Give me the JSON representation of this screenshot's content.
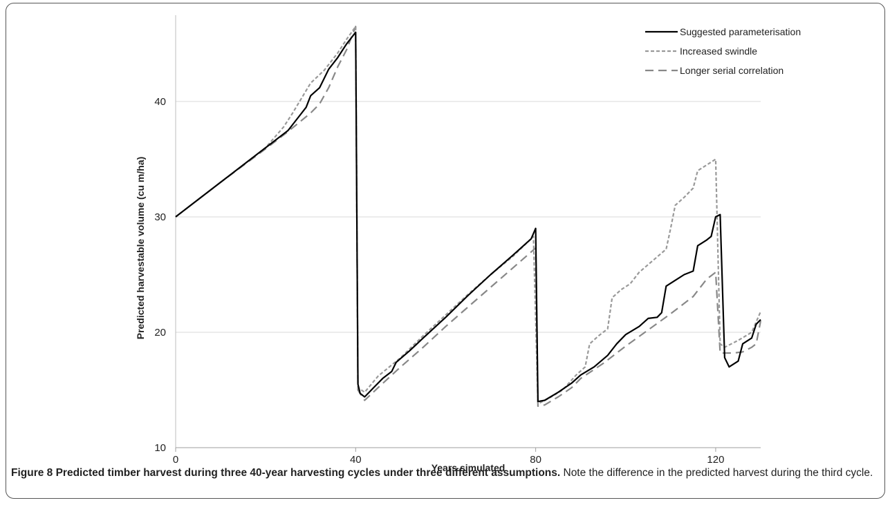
{
  "chart_data": {
    "type": "line",
    "xlabel": "Years simulated",
    "ylabel": "Predicted harvestable volume (cu m/ha)",
    "xlim": [
      0,
      130
    ],
    "ylim": [
      10,
      47
    ],
    "xticks": [
      0,
      40,
      80,
      120
    ],
    "yticks": [
      10,
      20,
      30,
      40
    ],
    "grid": "horizontal",
    "legend": "top-right",
    "series": [
      {
        "name": "Suggested parameterisation",
        "style": "solid",
        "color": "#000000",
        "points": [
          [
            0,
            30
          ],
          [
            10,
            33
          ],
          [
            20,
            36
          ],
          [
            25,
            37.5
          ],
          [
            27,
            38.5
          ],
          [
            29,
            39.5
          ],
          [
            30,
            40.5
          ],
          [
            32,
            41.2
          ],
          [
            34,
            42.8
          ],
          [
            36,
            43.8
          ],
          [
            38,
            45
          ],
          [
            40,
            46
          ],
          [
            40.5,
            15.5
          ],
          [
            41,
            14.7
          ],
          [
            42,
            14.4
          ],
          [
            44,
            15.2
          ],
          [
            46,
            16
          ],
          [
            48,
            16.6
          ],
          [
            49,
            17.4
          ],
          [
            52,
            18.4
          ],
          [
            55,
            19.5
          ],
          [
            60,
            21.3
          ],
          [
            65,
            23.2
          ],
          [
            70,
            25
          ],
          [
            75,
            26.7
          ],
          [
            79,
            28.1
          ],
          [
            80,
            29
          ],
          [
            80.5,
            14
          ],
          [
            82,
            14.1
          ],
          [
            85,
            14.8
          ],
          [
            88,
            15.6
          ],
          [
            90,
            16.3
          ],
          [
            93,
            17
          ],
          [
            96,
            18
          ],
          [
            98,
            19
          ],
          [
            100,
            19.8
          ],
          [
            103,
            20.5
          ],
          [
            105,
            21.2
          ],
          [
            107,
            21.3
          ],
          [
            108,
            21.7
          ],
          [
            109,
            24
          ],
          [
            111,
            24.5
          ],
          [
            113,
            25
          ],
          [
            115,
            25.3
          ],
          [
            116,
            27.5
          ],
          [
            118,
            28
          ],
          [
            119,
            28.3
          ],
          [
            120,
            30
          ],
          [
            121,
            30.2
          ],
          [
            122,
            17.8
          ],
          [
            123,
            17
          ],
          [
            125,
            17.5
          ],
          [
            126,
            19
          ],
          [
            128,
            19.5
          ],
          [
            129,
            20.7
          ],
          [
            130,
            21.1
          ]
        ]
      },
      {
        "name": "Increased swindle",
        "style": "short-dash",
        "color": "#999999",
        "points": [
          [
            0,
            30
          ],
          [
            10,
            33
          ],
          [
            20,
            36
          ],
          [
            24,
            37.8
          ],
          [
            26,
            39
          ],
          [
            28,
            40.3
          ],
          [
            30,
            41.6
          ],
          [
            33,
            42.7
          ],
          [
            36,
            44.2
          ],
          [
            38,
            45.4
          ],
          [
            40,
            46.5
          ],
          [
            40.5,
            15.2
          ],
          [
            42,
            14.8
          ],
          [
            45,
            16.2
          ],
          [
            50,
            17.8
          ],
          [
            55,
            19.7
          ],
          [
            60,
            21.5
          ],
          [
            65,
            23.3
          ],
          [
            70,
            25
          ],
          [
            75,
            26.6
          ],
          [
            79.5,
            28.3
          ],
          [
            80.5,
            13.8
          ],
          [
            83,
            14.3
          ],
          [
            86,
            15
          ],
          [
            89,
            16.3
          ],
          [
            91,
            17
          ],
          [
            92,
            19
          ],
          [
            94,
            19.7
          ],
          [
            96,
            20.3
          ],
          [
            97,
            23
          ],
          [
            99,
            23.7
          ],
          [
            101,
            24.2
          ],
          [
            103,
            25.2
          ],
          [
            106,
            26.2
          ],
          [
            109,
            27.2
          ],
          [
            110,
            29
          ],
          [
            111,
            31
          ],
          [
            113,
            31.7
          ],
          [
            115,
            32.5
          ],
          [
            116,
            34
          ],
          [
            118,
            34.5
          ],
          [
            120,
            35
          ],
          [
            121,
            19
          ],
          [
            122,
            18.7
          ],
          [
            125,
            19.3
          ],
          [
            128,
            20
          ],
          [
            130,
            21.8
          ]
        ]
      },
      {
        "name": "Longer serial correlation",
        "style": "long-dash",
        "color": "#888888",
        "points": [
          [
            0,
            30
          ],
          [
            10,
            33
          ],
          [
            20,
            35.9
          ],
          [
            25,
            37.4
          ],
          [
            30,
            39
          ],
          [
            32,
            39.8
          ],
          [
            34,
            41.2
          ],
          [
            36,
            43
          ],
          [
            38,
            44.5
          ],
          [
            40,
            46.5
          ],
          [
            40.5,
            15
          ],
          [
            42,
            14.1
          ],
          [
            45,
            15.2
          ],
          [
            50,
            17
          ],
          [
            55,
            18.7
          ],
          [
            60,
            20.5
          ],
          [
            65,
            22.2
          ],
          [
            70,
            23.9
          ],
          [
            75,
            25.6
          ],
          [
            80,
            27.3
          ],
          [
            80.5,
            13.6
          ],
          [
            82,
            13.7
          ],
          [
            85,
            14.4
          ],
          [
            88,
            15.2
          ],
          [
            90,
            16
          ],
          [
            95,
            17.3
          ],
          [
            100,
            18.8
          ],
          [
            105,
            20.2
          ],
          [
            110,
            21.6
          ],
          [
            115,
            23.1
          ],
          [
            118,
            24.6
          ],
          [
            120,
            25.2
          ],
          [
            121,
            18.2
          ],
          [
            124,
            18.2
          ],
          [
            126,
            18.3
          ],
          [
            128,
            18.7
          ],
          [
            129,
            19
          ],
          [
            130,
            21
          ]
        ]
      }
    ]
  },
  "caption": {
    "bold": "Figure 8 Predicted timber harvest during three 40-year harvesting cycles under three different assumptions.",
    "rest": " Note the difference in the predicted harvest during the third cycle."
  }
}
